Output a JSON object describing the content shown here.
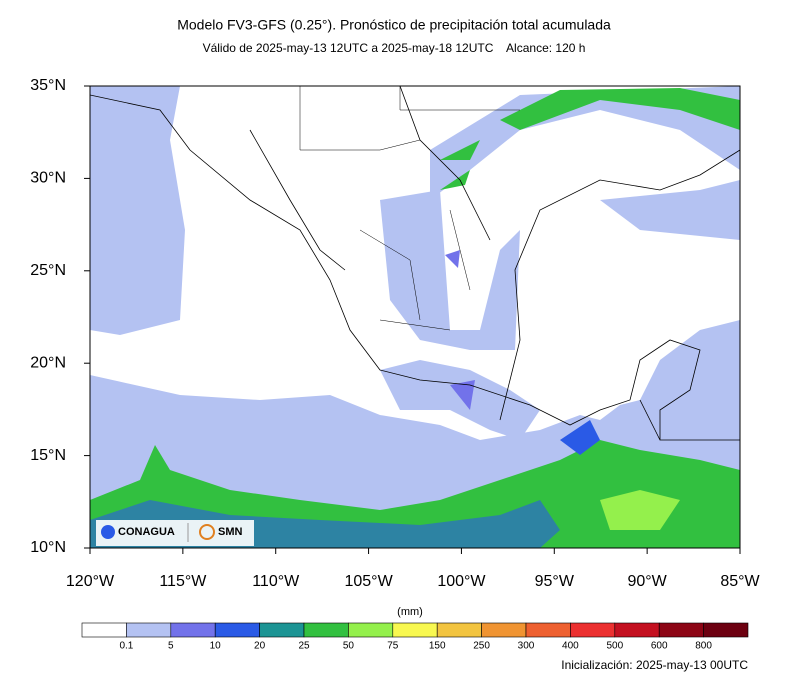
{
  "header": {
    "title": "Modelo FV3-GFS (0.25°). Pronóstico de precipitación total acumulada",
    "subtitle": "Válido de 2025-may-13 12UTC a 2025-may-18 12UTC    Alcance: 120 h"
  },
  "map": {
    "lat_ticks": [
      {
        "value": 35,
        "label": "35°N"
      },
      {
        "value": 30,
        "label": "30°N"
      },
      {
        "value": 25,
        "label": "25°N"
      },
      {
        "value": 20,
        "label": "20°N"
      },
      {
        "value": 15,
        "label": "15°N"
      },
      {
        "value": 10,
        "label": "10°N"
      }
    ],
    "lon_ticks": [
      {
        "value": -120,
        "label": "120°W"
      },
      {
        "value": -115,
        "label": "115°W"
      },
      {
        "value": -110,
        "label": "110°W"
      },
      {
        "value": -105,
        "label": "105°W"
      },
      {
        "value": -100,
        "label": "100°W"
      },
      {
        "value": -95,
        "label": "95°W"
      },
      {
        "value": -90,
        "label": "90°W"
      },
      {
        "value": -85,
        "label": "85°W"
      }
    ],
    "logos": [
      "CONAGUA",
      "SMN"
    ]
  },
  "colorbar": {
    "units": "(mm)",
    "levels": [
      0.1,
      5,
      10,
      20,
      25,
      50,
      75,
      150,
      250,
      300,
      400,
      500,
      600,
      800
    ],
    "colors": [
      "#ffffff",
      "#b4c2f2",
      "#7272ea",
      "#2a5ae6",
      "#1c9494",
      "#32c040",
      "#94f04c",
      "#f8f850",
      "#f2c440",
      "#f09432",
      "#ee6030",
      "#ec3030",
      "#c41020",
      "#8c0414",
      "#6c0010"
    ]
  },
  "footer": {
    "init": "Inicialización: 2025-may-13 00UTC"
  }
}
